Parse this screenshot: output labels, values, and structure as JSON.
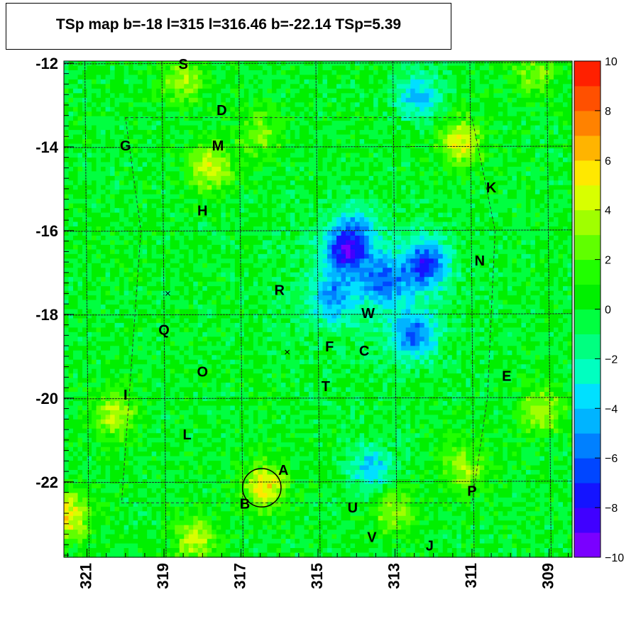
{
  "chart_data": {
    "type": "heatmap",
    "title": "TSp map b=-18 l=315 l=316.46 b=-22.14 TSp=5.39",
    "x_range": [
      321.6,
      308.4
    ],
    "y_range": [
      -23.8,
      -11.95
    ],
    "x_ticks": [
      321,
      319,
      317,
      315,
      313,
      311,
      309
    ],
    "x_tick_labels": [
      "321",
      "319",
      "317",
      "315",
      "313",
      "311",
      "309"
    ],
    "y_ticks": [
      -12,
      -14,
      -16,
      -18,
      -20,
      -22
    ],
    "y_tick_labels": [
      "-12",
      "-14",
      "-16",
      "-18",
      "-20",
      "-22"
    ],
    "z_range": [
      -10,
      10
    ],
    "colorbar_ticks": [
      10,
      8,
      6,
      4,
      2,
      0,
      -2,
      -4,
      -6,
      -8,
      -10
    ],
    "colorbar_labels": [
      "10",
      "8",
      "6",
      "4",
      "2",
      "0",
      "−2",
      "−4",
      "−6",
      "−8",
      "−10"
    ],
    "colorbar_colors": [
      "#7a00ff",
      "#4000ff",
      "#1414ff",
      "#0046ff",
      "#0080ff",
      "#00b4ff",
      "#00e0ff",
      "#00ffc0",
      "#00ff80",
      "#00ff40",
      "#00f000",
      "#20ff00",
      "#60ff00",
      "#a0ff00",
      "#d8ff00",
      "#ffe800",
      "#ffb400",
      "#ff8200",
      "#ff5000",
      "#ff2000"
    ],
    "background_level": 0,
    "hotspots": [
      {
        "l": 317.8,
        "b": -14.5,
        "value": 4.5
      },
      {
        "l": 316.4,
        "b": -22.1,
        "value": 5.4
      },
      {
        "l": 318.2,
        "b": -23.4,
        "value": 4.0
      },
      {
        "l": 321.5,
        "b": -22.8,
        "value": 5.5
      },
      {
        "l": 309.2,
        "b": -20.3,
        "value": 4.0
      },
      {
        "l": 311.3,
        "b": -13.9,
        "value": 5.0
      },
      {
        "l": 320.3,
        "b": -20.4,
        "value": 4.0
      },
      {
        "l": 318.5,
        "b": -12.4,
        "value": 3.5
      },
      {
        "l": 311.2,
        "b": -21.7,
        "value": 3.5
      },
      {
        "l": 313.0,
        "b": -22.7,
        "value": 3.5
      },
      {
        "l": 309.4,
        "b": -12.2,
        "value": 3.0
      },
      {
        "l": 316.5,
        "b": -13.7,
        "value": 3.0
      }
    ],
    "coldspots": [
      {
        "l": 314.3,
        "b": -16.5,
        "value": -6.5
      },
      {
        "l": 312.2,
        "b": -16.8,
        "value": -6.5
      },
      {
        "l": 312.5,
        "b": -18.5,
        "value": -5.5
      },
      {
        "l": 313.3,
        "b": -17.2,
        "value": -4.5
      },
      {
        "l": 312.4,
        "b": -12.8,
        "value": -4.0
      },
      {
        "l": 314.6,
        "b": -17.6,
        "value": -4.0
      },
      {
        "l": 313.6,
        "b": -21.7,
        "value": -4.0
      },
      {
        "l": 314.0,
        "b": -16.0,
        "value": -3.5
      }
    ],
    "source_labels": [
      {
        "label": "S",
        "l": 318.5,
        "b": -12.0
      },
      {
        "label": "D",
        "l": 317.5,
        "b": -13.1
      },
      {
        "label": "G",
        "l": 320.0,
        "b": -13.95
      },
      {
        "label": "M",
        "l": 317.6,
        "b": -13.95
      },
      {
        "label": "K",
        "l": 310.5,
        "b": -14.95
      },
      {
        "label": "H",
        "l": 318.0,
        "b": -15.5
      },
      {
        "label": "N",
        "l": 310.8,
        "b": -16.7
      },
      {
        "label": "R",
        "l": 316.0,
        "b": -17.4
      },
      {
        "label": "W",
        "l": 313.7,
        "b": -17.95
      },
      {
        "label": "Q",
        "l": 319.0,
        "b": -18.35
      },
      {
        "label": "F",
        "l": 314.7,
        "b": -18.75
      },
      {
        "label": "C",
        "l": 313.8,
        "b": -18.85
      },
      {
        "label": "O",
        "l": 318.0,
        "b": -19.35
      },
      {
        "label": "E",
        "l": 310.1,
        "b": -19.45
      },
      {
        "label": "T",
        "l": 314.8,
        "b": -19.7
      },
      {
        "label": "I",
        "l": 320.0,
        "b": -19.9
      },
      {
        "label": "L",
        "l": 318.4,
        "b": -20.85
      },
      {
        "label": "A",
        "l": 315.9,
        "b": -21.7
      },
      {
        "label": "P",
        "l": 311.0,
        "b": -22.2
      },
      {
        "label": "B",
        "l": 316.9,
        "b": -22.5
      },
      {
        "label": "U",
        "l": 314.1,
        "b": -22.6
      },
      {
        "label": "V",
        "l": 313.6,
        "b": -23.3
      },
      {
        "label": "J",
        "l": 312.1,
        "b": -23.5
      }
    ],
    "circle": {
      "l": 316.46,
      "b": -22.14,
      "radius_deg": 0.5
    },
    "crosses": [
      {
        "l": 318.9,
        "b": -17.5
      },
      {
        "l": 315.8,
        "b": -18.9
      }
    ],
    "grid": true
  }
}
